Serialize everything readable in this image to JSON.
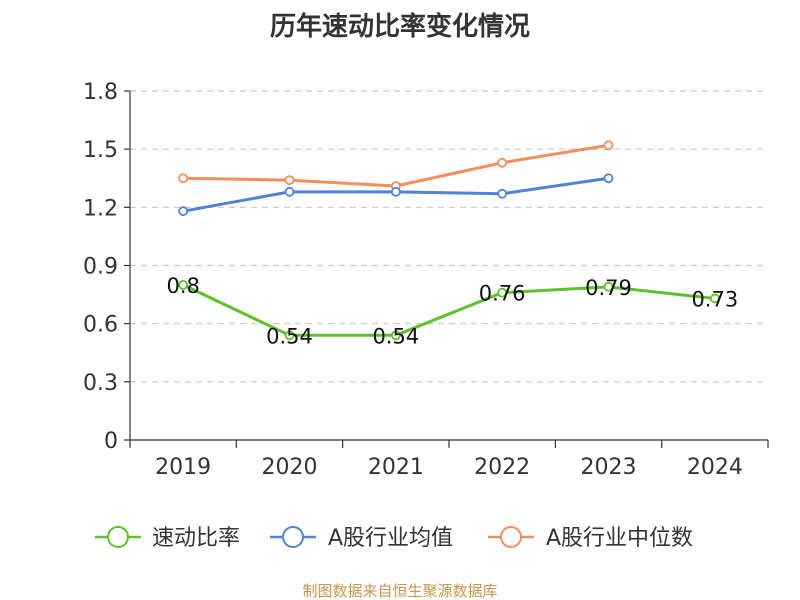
{
  "title": "历年速动比率变化情况",
  "source": "制图数据来自恒生聚源数据库",
  "colors": {
    "speed_ratio": "#5dc12b",
    "industry_mean": "#4f82d9",
    "industry_median": "#f28e5c",
    "grid": "#c8c8c8",
    "axis": "#333333"
  },
  "chart_data": {
    "type": "line",
    "title": "历年速动比率变化情况",
    "x": [
      "2019",
      "2020",
      "2021",
      "2022",
      "2023",
      "2024"
    ],
    "ylim": [
      0,
      1.8
    ],
    "yticks": [
      "0",
      "0.3",
      "0.6",
      "0.9",
      "1.2",
      "1.5",
      "1.8"
    ],
    "grid": true,
    "legend_position": "bottom",
    "series": [
      {
        "name": "速动比率",
        "values": [
          0.8,
          0.54,
          0.54,
          0.76,
          0.79,
          0.73
        ],
        "labels": [
          "0.8",
          "0.54",
          "0.54",
          "0.76",
          "0.79",
          "0.73"
        ],
        "color": "#5dc12b"
      },
      {
        "name": "A股行业均值",
        "values": [
          1.18,
          1.28,
          1.28,
          1.27,
          1.35,
          null
        ],
        "color": "#4f82d9"
      },
      {
        "name": "A股行业中位数",
        "values": [
          1.35,
          1.34,
          1.31,
          1.43,
          1.52,
          null
        ],
        "color": "#f28e5c"
      }
    ]
  }
}
